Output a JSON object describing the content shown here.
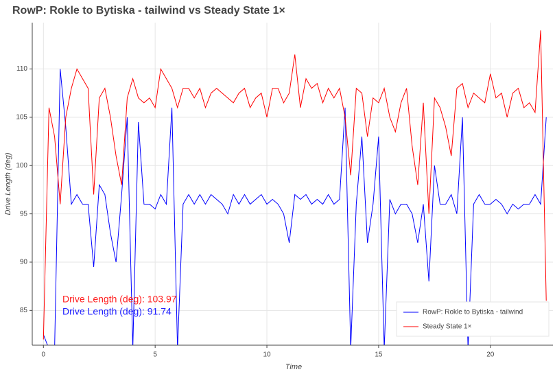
{
  "chart_data": {
    "type": "line",
    "title": "RowP: Rokle to Bytiska - tailwind vs Steady State 1×",
    "x_label": "Time",
    "y_label": "Drive Length (deg)",
    "annotations": [
      {
        "text": "Drive Length (deg): 103.97",
        "color": "#ff2020"
      },
      {
        "text": "Drive Length (deg):  91.74",
        "color": "#2020ff"
      }
    ],
    "x": [
      0,
      0.25,
      0.5,
      0.75,
      1,
      1.25,
      1.5,
      1.75,
      2,
      2.25,
      2.5,
      2.75,
      3,
      3.25,
      3.5,
      3.75,
      4,
      4.25,
      4.5,
      4.75,
      5,
      5.25,
      5.5,
      5.75,
      6,
      6.25,
      6.5,
      6.75,
      7,
      7.25,
      7.5,
      7.75,
      8,
      8.25,
      8.5,
      8.75,
      9,
      9.25,
      9.5,
      9.75,
      10,
      10.25,
      10.5,
      10.75,
      11,
      11.25,
      11.5,
      11.75,
      12,
      12.25,
      12.5,
      12.75,
      13,
      13.25,
      13.5,
      13.75,
      14,
      14.25,
      14.5,
      14.75,
      15,
      15.25,
      15.5,
      15.75,
      16,
      16.25,
      16.5,
      16.75,
      17,
      17.25,
      17.5,
      17.75,
      18,
      18.25,
      18.5,
      18.75,
      19,
      19.25,
      19.5,
      19.75,
      20,
      20.25,
      20.5,
      20.75,
      21,
      21.25,
      21.5,
      21.75,
      22,
      22.25,
      22.5
    ],
    "series": [
      {
        "name": "RowP: Rokle to Bytiska - tailwind",
        "color": "#0000ff",
        "values": [
          82.5,
          81,
          81,
          110,
          104,
          96,
          97,
          96,
          96,
          89.5,
          98,
          97,
          93,
          90,
          97,
          105,
          81,
          104.5,
          96,
          96,
          95.5,
          97,
          96,
          106,
          81,
          96,
          97,
          96,
          97,
          96,
          97,
          96.5,
          96,
          95,
          97,
          96,
          97,
          96,
          96.5,
          97,
          96,
          96.5,
          96,
          95,
          92,
          97,
          96.5,
          97,
          96,
          96.5,
          96,
          97,
          96,
          96.5,
          106,
          81,
          96,
          103,
          92,
          96,
          103,
          81,
          96.5,
          95,
          96,
          96,
          95,
          92,
          96,
          88,
          100,
          96,
          96,
          97,
          95,
          105,
          81,
          96,
          97,
          96,
          96,
          96.5,
          96,
          95,
          96,
          95.5,
          96,
          96,
          97,
          96,
          105
        ]
      },
      {
        "name": "Steady State 1×",
        "color": "#ff0000",
        "values": [
          82,
          106,
          103,
          96,
          105,
          108,
          110,
          109,
          108,
          97,
          107,
          108,
          105,
          101,
          98,
          107,
          109,
          107,
          106.5,
          107,
          106,
          110,
          109,
          108,
          106,
          108,
          108,
          107,
          108,
          106,
          107.5,
          108,
          107.5,
          107,
          106.5,
          107.5,
          108,
          106,
          107,
          107.5,
          105,
          108,
          108,
          106.5,
          107.5,
          111.5,
          106,
          109,
          108,
          108.5,
          106.5,
          108,
          107,
          108,
          105,
          99,
          108,
          107.5,
          103,
          107,
          106.5,
          108,
          105,
          103.5,
          106.5,
          108,
          102,
          98,
          106.5,
          95,
          107,
          106,
          104,
          101,
          108,
          108.5,
          106,
          107.5,
          107,
          106.5,
          109.5,
          107,
          107.5,
          105,
          107.5,
          108,
          106,
          106.5,
          105.5,
          114,
          86
        ]
      }
    ],
    "xlim": [
      -0.5,
      22.8
    ],
    "ylim": [
      81.4,
      114.8
    ],
    "xticks": [
      0,
      5,
      10,
      15,
      20
    ],
    "yticks": [
      85,
      90,
      95,
      100,
      105,
      110
    ],
    "grid": true
  }
}
